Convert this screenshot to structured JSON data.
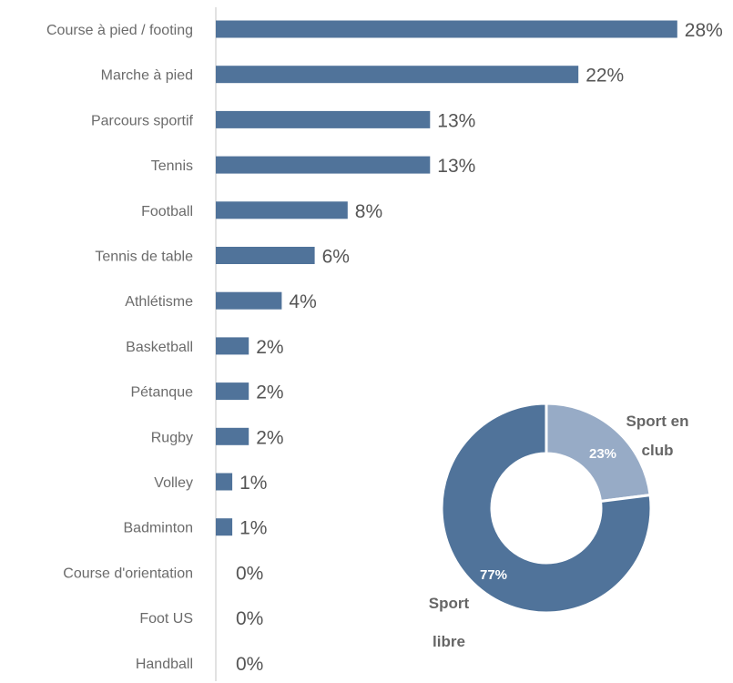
{
  "chart_data": [
    {
      "type": "bar",
      "orientation": "horizontal",
      "categories": [
        "Course à pied / footing",
        "Marche à pied",
        "Parcours sportif",
        "Tennis",
        "Football",
        "Tennis de table",
        "Athlétisme",
        "Basketball",
        "Pétanque",
        "Rugby",
        "Volley",
        "Badminton",
        "Course d'orientation",
        "Foot US",
        "Handball"
      ],
      "values": [
        28,
        22,
        13,
        13,
        8,
        6,
        4,
        2,
        2,
        2,
        1,
        1,
        0,
        0,
        0
      ],
      "data_labels": [
        "28%",
        "22%",
        "13%",
        "13%",
        "8%",
        "6%",
        "4%",
        "2%",
        "2%",
        "2%",
        "1%",
        "1%",
        "0%",
        "0%",
        "0%"
      ],
      "bar_color": "#50739a",
      "grid": false
    },
    {
      "type": "pie",
      "style": "donut",
      "slices": [
        {
          "label_lines": [
            "Sport en",
            "club"
          ],
          "value": 23,
          "pct_label": "23%",
          "color": "#97abc6"
        },
        {
          "label_lines": [
            "Sport",
            "libre"
          ],
          "value": 77,
          "pct_label": "77%",
          "color": "#50739a"
        }
      ]
    }
  ]
}
